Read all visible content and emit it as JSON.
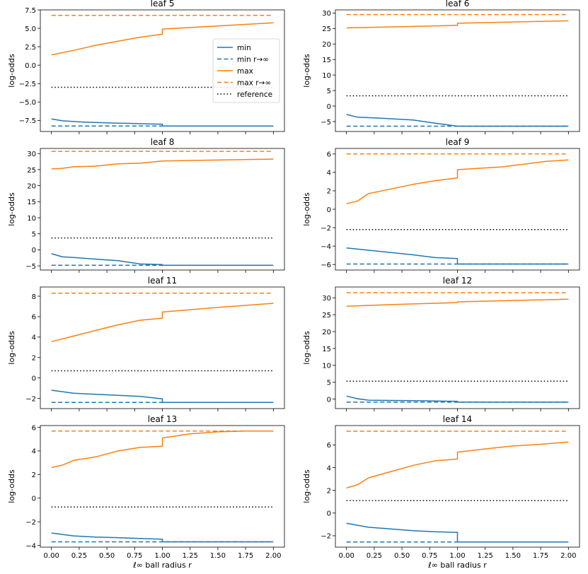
{
  "figure": {
    "xlabel": "ℓ∞ ball radius r",
    "ylabel": "log-odds"
  },
  "colors": {
    "min": "#1f77b4",
    "max": "#ff7f0e",
    "reference": "#000000"
  },
  "legend": {
    "panel": 0,
    "location": "right",
    "entries": [
      {
        "label": "min",
        "color": "#1f77b4",
        "style": "solid"
      },
      {
        "label": "min r→∞",
        "color": "#1f77b4",
        "style": "dashed"
      },
      {
        "label": "max",
        "color": "#ff7f0e",
        "style": "solid"
      },
      {
        "label": "max r→∞",
        "color": "#ff7f0e",
        "style": "dashed"
      },
      {
        "label": "reference",
        "color": "#000000",
        "style": "dotted"
      }
    ]
  },
  "chart_data": [
    {
      "type": "line",
      "title": "leaf 5",
      "xlabel": "",
      "ylabel": "log-odds",
      "xlim": [
        -0.1,
        2.1
      ],
      "ylim": [
        -9.0,
        7.5
      ],
      "xticks": [],
      "xtick_labels": [],
      "yticks": [
        -7.5,
        -5.0,
        -2.5,
        0.0,
        2.5,
        5.0,
        7.5
      ],
      "ytick_labels": [
        "−7.5",
        "−5.0",
        "−2.5",
        "0.0",
        "2.5",
        "5.0",
        "7.5"
      ],
      "series": [
        {
          "name": "min",
          "x": [
            0,
            0.1,
            0.2,
            0.3,
            0.4,
            0.5,
            0.6,
            0.7,
            0.8,
            0.9,
            1.0,
            1.0,
            2.0
          ],
          "y": [
            -7.3,
            -7.55,
            -7.65,
            -7.72,
            -7.78,
            -7.83,
            -7.87,
            -7.9,
            -7.94,
            -7.98,
            -8.0,
            -8.25,
            -8.25
          ]
        },
        {
          "name": "min r→∞",
          "x": [
            0,
            2.0
          ],
          "y": [
            -8.25,
            -8.25
          ]
        },
        {
          "name": "max",
          "x": [
            0,
            0.2,
            0.4,
            0.6,
            0.8,
            1.0,
            1.0,
            2.0
          ],
          "y": [
            1.4,
            2.0,
            2.7,
            3.25,
            3.8,
            4.2,
            4.9,
            5.75
          ]
        },
        {
          "name": "max r→∞",
          "x": [
            0,
            2.0
          ],
          "y": [
            6.75,
            6.75
          ]
        },
        {
          "name": "reference",
          "x": [
            0,
            2.0
          ],
          "y": [
            -3.0,
            -3.0
          ]
        }
      ]
    },
    {
      "type": "line",
      "title": "leaf 6",
      "xlabel": "",
      "ylabel": "log-odds",
      "xlim": [
        -0.1,
        2.1
      ],
      "ylim": [
        -8.2,
        31.0
      ],
      "xticks": [],
      "xtick_labels": [],
      "yticks": [
        -5,
        0,
        5,
        10,
        15,
        20,
        25,
        30
      ],
      "ytick_labels": [
        "−5",
        "0",
        "5",
        "10",
        "15",
        "20",
        "25",
        "30"
      ],
      "series": [
        {
          "name": "min",
          "x": [
            0,
            0.1,
            0.3,
            0.6,
            0.8,
            1.0,
            2.0
          ],
          "y": [
            -2.7,
            -3.6,
            -3.9,
            -4.5,
            -5.5,
            -6.5,
            -6.5
          ]
        },
        {
          "name": "min r→∞",
          "x": [
            0,
            2.0
          ],
          "y": [
            -6.5,
            -6.5
          ]
        },
        {
          "name": "max",
          "x": [
            0,
            0.5,
            1.0,
            1.0,
            2.0
          ],
          "y": [
            25.2,
            25.6,
            26.0,
            26.7,
            27.5
          ]
        },
        {
          "name": "max r→∞",
          "x": [
            0,
            2.0
          ],
          "y": [
            29.5,
            29.5
          ]
        },
        {
          "name": "reference",
          "x": [
            0,
            2.0
          ],
          "y": [
            3.3,
            3.3
          ]
        }
      ]
    },
    {
      "type": "line",
      "title": "leaf 8",
      "xlabel": "",
      "ylabel": "log-odds",
      "xlim": [
        -0.1,
        2.1
      ],
      "ylim": [
        -6.3,
        31.6
      ],
      "xticks": [],
      "xtick_labels": [],
      "yticks": [
        -5,
        0,
        5,
        10,
        15,
        20,
        25,
        30
      ],
      "ytick_labels": [
        "−5",
        "0",
        "5",
        "10",
        "15",
        "20",
        "25",
        "30"
      ],
      "series": [
        {
          "name": "min",
          "x": [
            0,
            0.1,
            0.2,
            0.4,
            0.6,
            0.8,
            1.0,
            1.0,
            2.0
          ],
          "y": [
            -1.2,
            -2.2,
            -2.4,
            -2.9,
            -3.4,
            -4.4,
            -4.6,
            -4.8,
            -4.8
          ]
        },
        {
          "name": "min r→∞",
          "x": [
            0,
            2.0
          ],
          "y": [
            -4.8,
            -4.8
          ]
        },
        {
          "name": "max",
          "x": [
            0,
            0.1,
            0.2,
            0.4,
            0.6,
            0.8,
            1.0,
            2.0
          ],
          "y": [
            25.2,
            25.4,
            25.9,
            26.1,
            26.8,
            27.0,
            27.7,
            28.3
          ]
        },
        {
          "name": "max r→∞",
          "x": [
            0,
            2.0
          ],
          "y": [
            30.7,
            30.7
          ]
        },
        {
          "name": "reference",
          "x": [
            0,
            2.0
          ],
          "y": [
            3.7,
            3.7
          ]
        }
      ]
    },
    {
      "type": "line",
      "title": "leaf 9",
      "xlabel": "",
      "ylabel": "log-odds",
      "xlim": [
        -0.1,
        2.1
      ],
      "ylim": [
        -6.6,
        6.6
      ],
      "xticks": [],
      "xtick_labels": [],
      "yticks": [
        -6,
        -4,
        -2,
        0,
        2,
        4,
        6
      ],
      "ytick_labels": [
        "−6",
        "−4",
        "−2",
        "0",
        "2",
        "4",
        "6"
      ],
      "series": [
        {
          "name": "min",
          "x": [
            0,
            0.2,
            0.4,
            0.6,
            0.8,
            1.0,
            1.0,
            2.0
          ],
          "y": [
            -4.2,
            -4.45,
            -4.7,
            -4.95,
            -5.25,
            -5.35,
            -5.95,
            -5.95
          ]
        },
        {
          "name": "min r→∞",
          "x": [
            0,
            2.0
          ],
          "y": [
            -5.95,
            -5.95
          ]
        },
        {
          "name": "max",
          "x": [
            0,
            0.1,
            0.2,
            0.4,
            0.6,
            0.8,
            1.0,
            1.0,
            1.2,
            1.4,
            1.6,
            1.8,
            2.0
          ],
          "y": [
            0.6,
            0.9,
            1.7,
            2.2,
            2.7,
            3.1,
            3.4,
            4.3,
            4.45,
            4.6,
            4.9,
            5.2,
            5.35
          ]
        },
        {
          "name": "max r→∞",
          "x": [
            0,
            2.0
          ],
          "y": [
            6.0,
            6.0
          ]
        },
        {
          "name": "reference",
          "x": [
            0,
            2.0
          ],
          "y": [
            -2.2,
            -2.2
          ]
        }
      ]
    },
    {
      "type": "line",
      "title": "leaf 11",
      "xlabel": "",
      "ylabel": "log-odds",
      "xlim": [
        -0.1,
        2.1
      ],
      "ylim": [
        -3.0,
        8.9
      ],
      "xticks": [],
      "xtick_labels": [],
      "yticks": [
        -2,
        0,
        2,
        4,
        6,
        8
      ],
      "ytick_labels": [
        "−2",
        "0",
        "2",
        "4",
        "6",
        "8"
      ],
      "series": [
        {
          "name": "min",
          "x": [
            0,
            0.2,
            0.4,
            0.6,
            0.8,
            1.0,
            1.0,
            2.0
          ],
          "y": [
            -1.2,
            -1.5,
            -1.6,
            -1.7,
            -1.8,
            -2.05,
            -2.4,
            -2.4
          ]
        },
        {
          "name": "min r→∞",
          "x": [
            0,
            2.0
          ],
          "y": [
            -2.4,
            -2.4
          ]
        },
        {
          "name": "max",
          "x": [
            0,
            0.2,
            0.4,
            0.6,
            0.8,
            1.0,
            1.0,
            1.5,
            2.0
          ],
          "y": [
            3.55,
            4.1,
            4.65,
            5.2,
            5.65,
            5.85,
            6.45,
            6.9,
            7.3
          ]
        },
        {
          "name": "max r→∞",
          "x": [
            0,
            2.0
          ],
          "y": [
            8.3,
            8.3
          ]
        },
        {
          "name": "reference",
          "x": [
            0,
            2.0
          ],
          "y": [
            0.7,
            0.7
          ]
        }
      ]
    },
    {
      "type": "line",
      "title": "leaf 12",
      "xlabel": "",
      "ylabel": "log-odds",
      "xlim": [
        -0.1,
        2.1
      ],
      "ylim": [
        -2.8,
        33.2
      ],
      "xticks": [],
      "xtick_labels": [],
      "yticks": [
        0,
        5,
        10,
        15,
        20,
        25,
        30
      ],
      "ytick_labels": [
        "0",
        "5",
        "10",
        "15",
        "20",
        "25",
        "30"
      ],
      "series": [
        {
          "name": "min",
          "x": [
            0,
            0.1,
            0.2,
            0.4,
            0.6,
            0.8,
            1.0,
            1.0,
            2.0
          ],
          "y": [
            0.9,
            0.1,
            -0.3,
            -0.4,
            -0.45,
            -0.55,
            -0.65,
            -0.9,
            -0.9
          ]
        },
        {
          "name": "min r→∞",
          "x": [
            0,
            2.0
          ],
          "y": [
            -0.9,
            -0.9
          ]
        },
        {
          "name": "max",
          "x": [
            0,
            0.5,
            1.0,
            1.0,
            2.0
          ],
          "y": [
            27.5,
            28.1,
            28.6,
            28.8,
            29.6
          ]
        },
        {
          "name": "max r→∞",
          "x": [
            0,
            2.0
          ],
          "y": [
            31.5,
            31.5
          ]
        },
        {
          "name": "reference",
          "x": [
            0,
            2.0
          ],
          "y": [
            5.3,
            5.3
          ]
        }
      ]
    },
    {
      "type": "line",
      "title": "leaf 13",
      "xlabel": "ℓ∞ ball radius r",
      "ylabel": "log-odds",
      "xlim": [
        -0.1,
        2.1
      ],
      "ylim": [
        -4.15,
        6.15
      ],
      "xticks": [
        0.0,
        0.25,
        0.5,
        0.75,
        1.0,
        1.25,
        1.5,
        1.75,
        2.0
      ],
      "xtick_labels": [
        "0.00",
        "0.25",
        "0.50",
        "0.75",
        "1.00",
        "1.25",
        "1.50",
        "1.75",
        "2.00"
      ],
      "yticks": [
        -4,
        -2,
        0,
        2,
        4,
        6
      ],
      "ytick_labels": [
        "−4",
        "−2",
        "0",
        "2",
        "4",
        "6"
      ],
      "series": [
        {
          "name": "min",
          "x": [
            0,
            0.2,
            0.4,
            0.6,
            0.8,
            1.0,
            1.0,
            2.0
          ],
          "y": [
            -2.95,
            -3.2,
            -3.3,
            -3.35,
            -3.42,
            -3.48,
            -3.7,
            -3.7
          ]
        },
        {
          "name": "min r→∞",
          "x": [
            0,
            2.0
          ],
          "y": [
            -3.7,
            -3.7
          ]
        },
        {
          "name": "max",
          "x": [
            0,
            0.1,
            0.2,
            0.4,
            0.6,
            0.8,
            1.0,
            1.0,
            1.25,
            1.5,
            1.75,
            2.0
          ],
          "y": [
            2.6,
            2.8,
            3.2,
            3.5,
            4.0,
            4.3,
            4.4,
            5.1,
            5.45,
            5.62,
            5.68,
            5.68
          ]
        },
        {
          "name": "max r→∞",
          "x": [
            0,
            2.0
          ],
          "y": [
            5.68,
            5.68
          ]
        },
        {
          "name": "reference",
          "x": [
            0,
            2.0
          ],
          "y": [
            -0.75,
            -0.75
          ]
        }
      ]
    },
    {
      "type": "line",
      "title": "leaf 14",
      "xlabel": "ℓ∞ ball radius r",
      "ylabel": "log-odds",
      "xlim": [
        -0.1,
        2.1
      ],
      "ylim": [
        -3.0,
        7.7
      ],
      "xticks": [
        0.0,
        0.25,
        0.5,
        0.75,
        1.0,
        1.25,
        1.5,
        1.75,
        2.0
      ],
      "xtick_labels": [
        "0.00",
        "0.25",
        "0.50",
        "0.75",
        "1.00",
        "1.25",
        "1.50",
        "1.75",
        "2.00"
      ],
      "yticks": [
        -2,
        0,
        2,
        4,
        6
      ],
      "ytick_labels": [
        "−2",
        "0",
        "2",
        "4",
        "6"
      ],
      "series": [
        {
          "name": "min",
          "x": [
            0,
            0.2,
            0.4,
            0.6,
            0.8,
            1.0,
            1.0,
            2.0
          ],
          "y": [
            -0.9,
            -1.25,
            -1.4,
            -1.55,
            -1.65,
            -1.7,
            -2.55,
            -2.55
          ]
        },
        {
          "name": "min r→∞",
          "x": [
            0,
            2.0
          ],
          "y": [
            -2.55,
            -2.55
          ]
        },
        {
          "name": "max",
          "x": [
            0,
            0.1,
            0.2,
            0.4,
            0.6,
            0.8,
            1.0,
            1.0,
            1.25,
            1.5,
            1.75,
            2.0
          ],
          "y": [
            2.2,
            2.5,
            3.1,
            3.65,
            4.2,
            4.6,
            4.75,
            5.35,
            5.65,
            5.9,
            6.05,
            6.25
          ]
        },
        {
          "name": "max r→∞",
          "x": [
            0,
            2.0
          ],
          "y": [
            7.2,
            7.2
          ]
        },
        {
          "name": "reference",
          "x": [
            0,
            2.0
          ],
          "y": [
            1.1,
            1.1
          ]
        }
      ]
    }
  ]
}
